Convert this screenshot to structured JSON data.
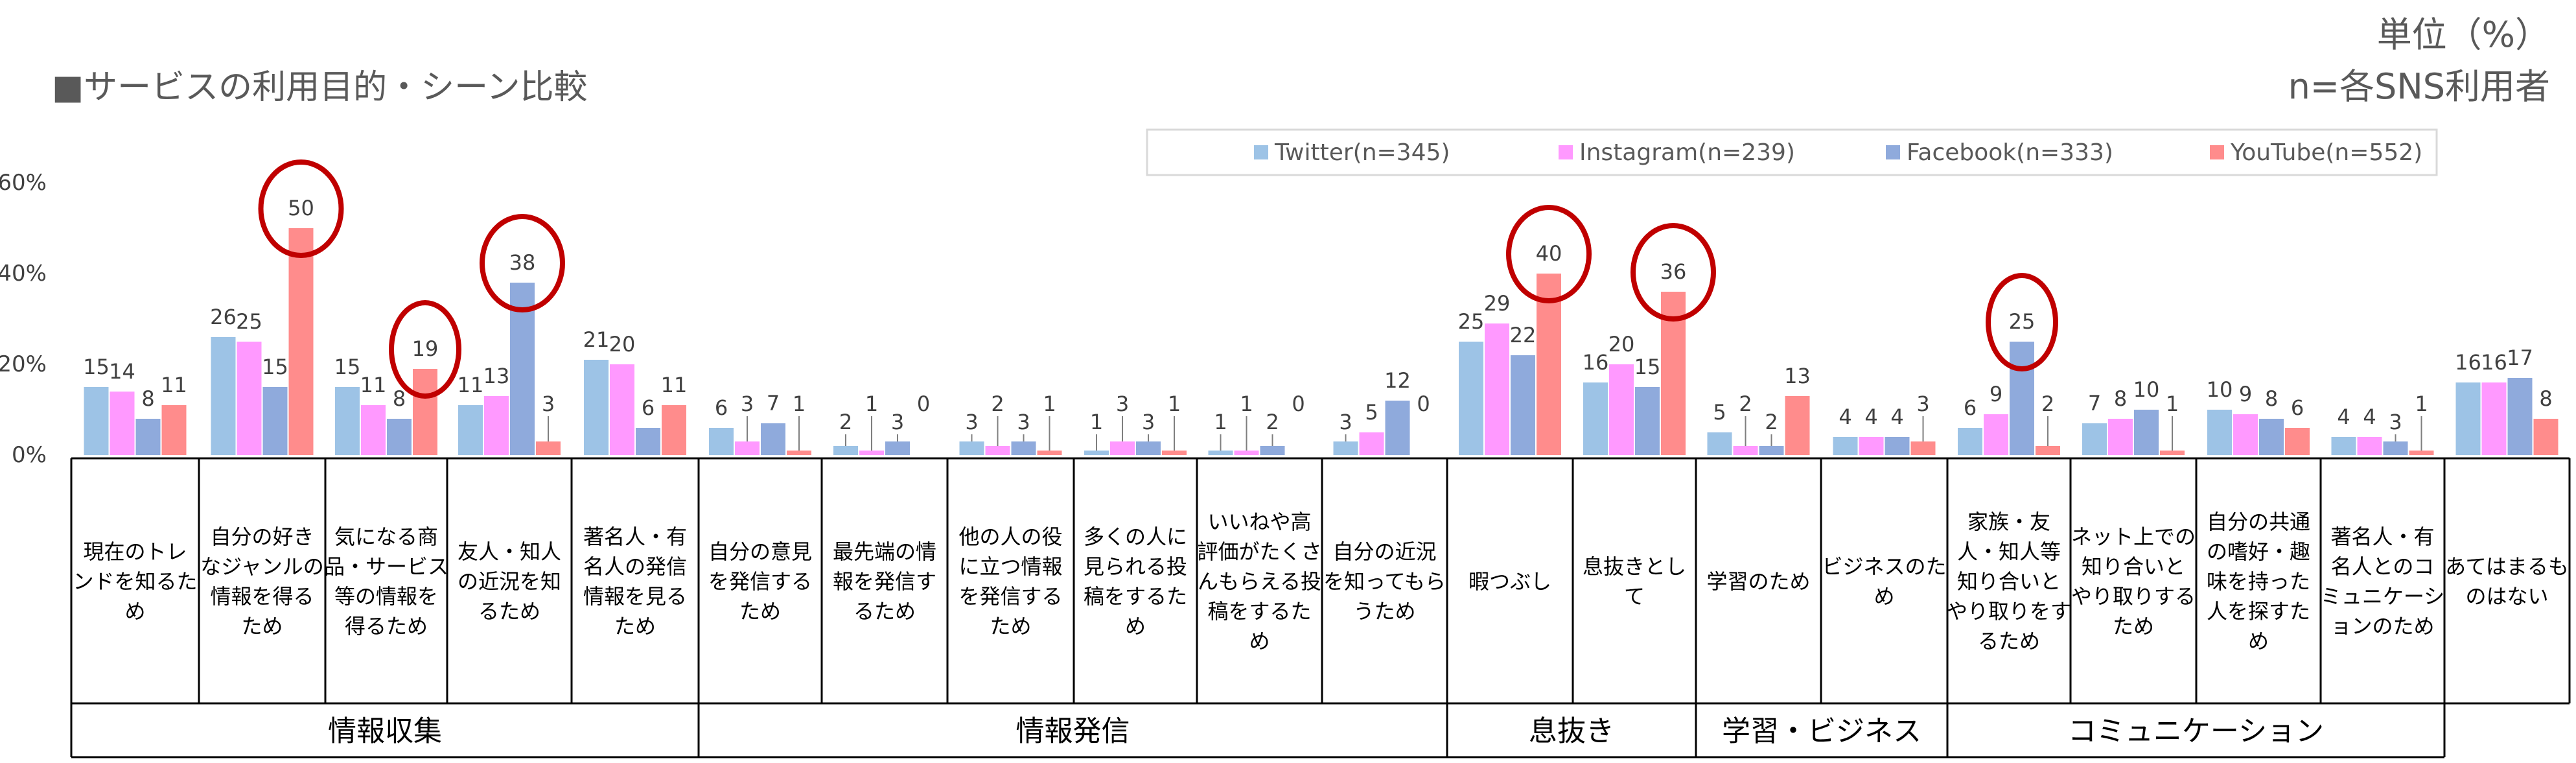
{
  "header": {
    "title": "■サービスの利用目的・シーン比較",
    "unit": "単位（%）",
    "n_note": "n=各SNS利用者"
  },
  "chart_data": {
    "type": "bar",
    "ylim": [
      0,
      60
    ],
    "yticks": [
      "0%",
      "20%",
      "40%",
      "60%"
    ],
    "ytick_values": [
      0,
      20,
      40,
      60
    ],
    "grid": false,
    "legend_position": "top-right",
    "colors": [
      "#9DC3E6",
      "#FF99FF",
      "#8FAADC",
      "#FF8C8C"
    ],
    "highlight_color": "#C00000",
    "series": [
      {
        "name": "Twitter(n=345)",
        "values": [
          15,
          26,
          15,
          11,
          21,
          6,
          2,
          3,
          1,
          1,
          3,
          25,
          16,
          5,
          4,
          6,
          7,
          10,
          4,
          16
        ]
      },
      {
        "name": "Instagram(n=239)",
        "values": [
          14,
          25,
          11,
          13,
          20,
          3,
          1,
          2,
          3,
          1,
          5,
          29,
          20,
          2,
          4,
          9,
          8,
          9,
          4,
          16
        ]
      },
      {
        "name": "Facebook(n=333)",
        "values": [
          8,
          15,
          8,
          38,
          6,
          7,
          3,
          3,
          3,
          2,
          12,
          22,
          15,
          2,
          4,
          25,
          10,
          8,
          3,
          17
        ]
      },
      {
        "name": "YouTube(n=552)",
        "values": [
          11,
          50,
          19,
          3,
          11,
          1,
          0,
          1,
          1,
          0,
          0,
          40,
          36,
          13,
          3,
          2,
          1,
          6,
          1,
          8
        ]
      }
    ],
    "categories": [
      "現在のトレ|ンドを知るた|め",
      "自分の好き|なジャンルの|情報を得る|ため",
      "気になる商|品・サービス|等の情報を|得るため",
      "友人・知人|の近況を知|るため",
      "著名人・有|名人の発信|情報を見る|ため",
      "自分の意見|を発信する|ため",
      "最先端の情|報を発信す|るため",
      "他の人の役|に立つ情報|を発信する|ため",
      "多くの人に|見られる投|稿をするた|め",
      "いいねや高|評価がたくさ|んもらえる投|稿をするた|め",
      "自分の近況|を知ってもら|うため",
      "暇つぶし",
      "息抜きとし|て",
      "学習のため",
      "ビジネスのた|め",
      "家族・友|人・知人等|知り合いと|やり取りをす|るため",
      "ネット上での|知り合いと|やり取りする|ため",
      "自分の共通|の嗜好・趣|味を持った|人を探すた|め",
      "著名人・有|名人とのコ|ミュニケーシ|ョンのため",
      "あてはまるも|のはない"
    ],
    "groups": [
      {
        "label": "情報収集",
        "start": 0,
        "end": 4
      },
      {
        "label": "情報発信",
        "start": 5,
        "end": 10
      },
      {
        "label": "息抜き",
        "start": 11,
        "end": 12
      },
      {
        "label": "学習・ビジネス",
        "start": 13,
        "end": 14
      },
      {
        "label": "コミュニケーション",
        "start": 15,
        "end": 18
      }
    ],
    "highlights": [
      {
        "category": 1,
        "series": 3
      },
      {
        "category": 2,
        "series": 3
      },
      {
        "category": 3,
        "series": 2
      },
      {
        "category": 11,
        "series": 3
      },
      {
        "category": 12,
        "series": 3
      },
      {
        "category": 15,
        "series": 2
      }
    ]
  }
}
